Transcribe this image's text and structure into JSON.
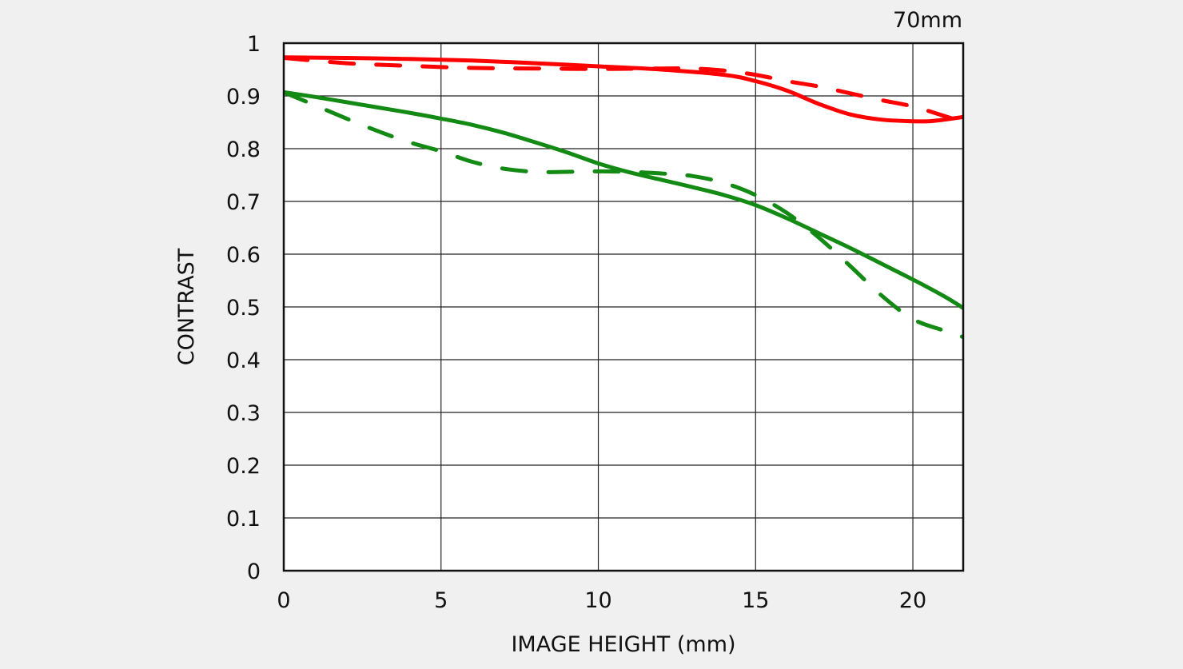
{
  "chart_data": {
    "type": "line",
    "title": "70mm",
    "xlabel": "IMAGE HEIGHT (mm)",
    "ylabel": "CONTRAST",
    "xlim": [
      0,
      21.6
    ],
    "ylim": [
      0,
      1
    ],
    "xticks": [
      0,
      5,
      10,
      15,
      20
    ],
    "xtick_labels": [
      "0",
      "5",
      "10",
      "15",
      "20"
    ],
    "yticks": [
      0,
      0.1,
      0.2,
      0.3,
      0.4,
      0.5,
      0.6,
      0.7,
      0.8,
      0.9,
      1
    ],
    "ytick_labels": [
      "0",
      "0.1",
      "0.2",
      "0.3",
      "0.4",
      "0.5",
      "0.6",
      "0.7",
      "0.8",
      "0.9",
      "1"
    ],
    "grid": true,
    "series": [
      {
        "color": "#ff0000",
        "style": "solid",
        "points": [
          [
            0,
            0.973
          ],
          [
            2,
            0.972
          ],
          [
            4,
            0.97
          ],
          [
            6,
            0.967
          ],
          [
            8,
            0.962
          ],
          [
            10,
            0.956
          ],
          [
            12,
            0.95
          ],
          [
            14,
            0.94
          ],
          [
            15,
            0.928
          ],
          [
            16,
            0.91
          ],
          [
            17,
            0.885
          ],
          [
            18,
            0.865
          ],
          [
            19,
            0.855
          ],
          [
            20,
            0.852
          ],
          [
            20.5,
            0.852
          ],
          [
            21,
            0.855
          ],
          [
            21.6,
            0.86
          ]
        ]
      },
      {
        "color": "#ff0000",
        "style": "dashed",
        "points": [
          [
            0,
            0.972
          ],
          [
            2,
            0.962
          ],
          [
            4,
            0.957
          ],
          [
            6,
            0.953
          ],
          [
            8,
            0.952
          ],
          [
            10,
            0.951
          ],
          [
            12,
            0.952
          ],
          [
            13,
            0.952
          ],
          [
            14,
            0.948
          ],
          [
            15,
            0.94
          ],
          [
            16,
            0.928
          ],
          [
            17,
            0.918
          ],
          [
            18,
            0.905
          ],
          [
            19,
            0.892
          ],
          [
            20,
            0.88
          ],
          [
            21,
            0.862
          ],
          [
            21.6,
            0.85
          ]
        ]
      },
      {
        "color": "#138a13",
        "style": "solid",
        "points": [
          [
            0,
            0.907
          ],
          [
            1,
            0.898
          ],
          [
            2,
            0.888
          ],
          [
            3,
            0.878
          ],
          [
            4,
            0.868
          ],
          [
            5,
            0.857
          ],
          [
            6,
            0.845
          ],
          [
            7,
            0.83
          ],
          [
            8,
            0.812
          ],
          [
            9,
            0.793
          ],
          [
            10,
            0.772
          ],
          [
            11,
            0.755
          ],
          [
            12,
            0.741
          ],
          [
            13,
            0.727
          ],
          [
            14,
            0.712
          ],
          [
            15,
            0.693
          ],
          [
            16,
            0.668
          ],
          [
            17,
            0.64
          ],
          [
            18,
            0.612
          ],
          [
            19,
            0.582
          ],
          [
            20,
            0.552
          ],
          [
            21,
            0.52
          ],
          [
            21.6,
            0.498
          ]
        ]
      },
      {
        "color": "#138a13",
        "style": "dashed",
        "points": [
          [
            0,
            0.907
          ],
          [
            1,
            0.882
          ],
          [
            2,
            0.857
          ],
          [
            3,
            0.833
          ],
          [
            4,
            0.812
          ],
          [
            5,
            0.795
          ],
          [
            6,
            0.775
          ],
          [
            7,
            0.762
          ],
          [
            8,
            0.756
          ],
          [
            9,
            0.756
          ],
          [
            10,
            0.757
          ],
          [
            11,
            0.756
          ],
          [
            12,
            0.753
          ],
          [
            13,
            0.748
          ],
          [
            14,
            0.735
          ],
          [
            15,
            0.712
          ],
          [
            16,
            0.678
          ],
          [
            17,
            0.632
          ],
          [
            18,
            0.578
          ],
          [
            19,
            0.522
          ],
          [
            20,
            0.477
          ],
          [
            21,
            0.455
          ],
          [
            21.6,
            0.443
          ]
        ]
      }
    ]
  }
}
